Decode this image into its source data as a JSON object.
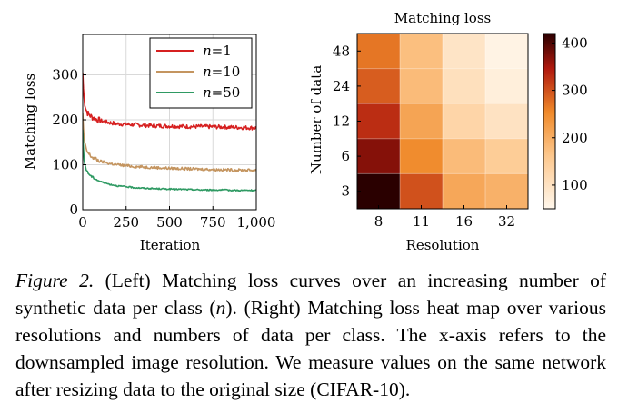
{
  "chart_data": [
    {
      "type": "line",
      "title": "",
      "xlabel": "Iteration",
      "ylabel": "Matching loss",
      "xlim": [
        0,
        1000
      ],
      "ylim": [
        0,
        390
      ],
      "x_ticks": [
        0,
        250,
        500,
        750,
        1000
      ],
      "x_tick_labels": [
        "0",
        "250",
        "500",
        "750",
        "1,000"
      ],
      "y_ticks": [
        0,
        100,
        200,
        300
      ],
      "y_tick_labels": [
        "0",
        "100",
        "200",
        "300"
      ],
      "grid": true,
      "legend_position": "top-right",
      "series": [
        {
          "name": "n=1",
          "legend_var": "n",
          "legend_value": "=1",
          "color": "#d62020",
          "x": [
            0,
            5,
            10,
            20,
            30,
            50,
            75,
            100,
            150,
            200,
            300,
            400,
            500,
            600,
            700,
            800,
            900,
            1000
          ],
          "values": [
            305,
            260,
            240,
            222,
            214,
            207,
            202,
            198,
            194,
            191,
            189,
            187,
            186,
            185,
            185,
            184,
            183,
            182
          ]
        },
        {
          "name": "n=10",
          "legend_var": "n",
          "legend_value": "=10",
          "color": "#c49560",
          "x": [
            0,
            5,
            10,
            20,
            30,
            50,
            75,
            100,
            150,
            200,
            300,
            400,
            500,
            600,
            700,
            800,
            900,
            1000
          ],
          "values": [
            215,
            170,
            150,
            134,
            126,
            118,
            112,
            108,
            103,
            100,
            96,
            94,
            92,
            91,
            90,
            89,
            88,
            88
          ]
        },
        {
          "name": "n=50",
          "legend_var": "n",
          "legend_value": "=50",
          "color": "#2f9a63",
          "x": [
            0,
            5,
            10,
            20,
            30,
            50,
            75,
            100,
            150,
            200,
            300,
            400,
            500,
            600,
            700,
            800,
            900,
            1000
          ],
          "values": [
            178,
            122,
            104,
            90,
            82,
            74,
            68,
            63,
            57,
            53,
            49,
            47,
            46,
            45,
            44,
            44,
            43,
            43
          ]
        }
      ]
    },
    {
      "type": "heatmap",
      "title": "Matching loss",
      "xlabel": "Resolution",
      "ylabel": "Number of data",
      "x_categories": [
        "8",
        "11",
        "16",
        "32"
      ],
      "y_categories": [
        "48",
        "24",
        "12",
        "6",
        "3"
      ],
      "values": [
        [
          270,
          175,
          95,
          60
        ],
        [
          290,
          180,
          105,
          70
        ],
        [
          330,
          215,
          130,
          100
        ],
        [
          370,
          250,
          180,
          150
        ],
        [
          420,
          300,
          210,
          195
        ]
      ],
      "colorbar_range": [
        50,
        420
      ],
      "colorbar_ticks": [
        100,
        200,
        300,
        400
      ],
      "colorbar_tick_labels": [
        "100",
        "200",
        "300",
        "400"
      ],
      "colormap": "light-to-dark orange-red"
    }
  ],
  "caption": {
    "label": "Figure 2.",
    "part1": " (Left) Matching loss curves over an increasing number of synthetic data per class (",
    "var": "n",
    "part2": "). (Right) Matching loss heat map over various resolutions and numbers of data per class. The x-axis refers to the downsampled image resolution. We measure values on the same network after resizing data to the original size (CIFAR-10)."
  }
}
